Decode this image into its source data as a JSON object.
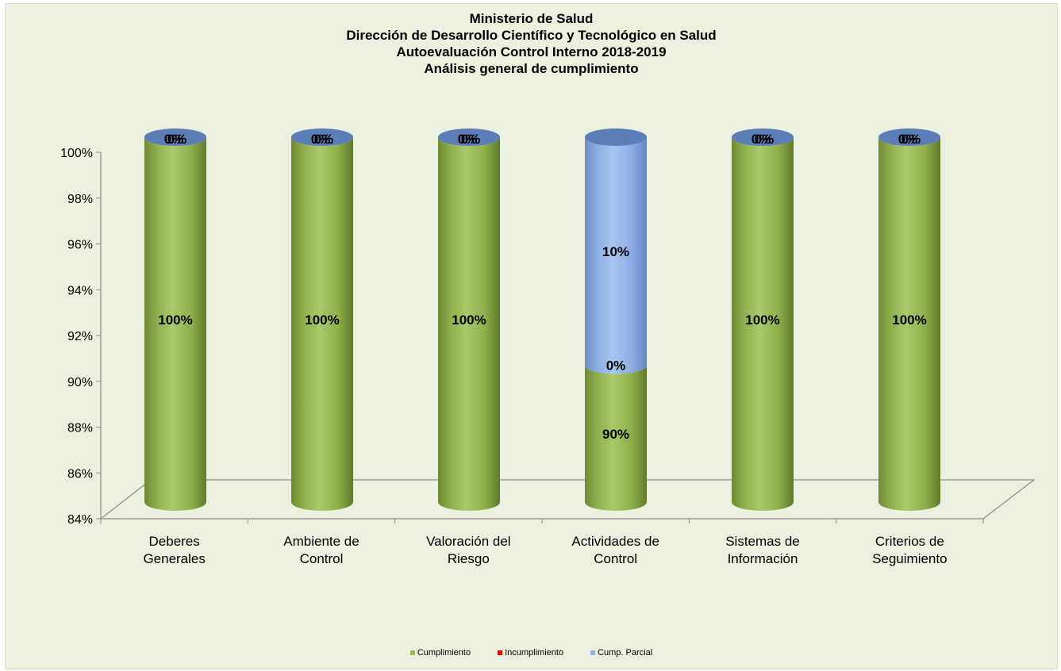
{
  "chart_data": {
    "type": "bar",
    "style": "3d-cylinder-stacked",
    "title_lines": [
      "Ministerio de Salud",
      "Dirección de Desarrollo Científico y Tecnológico en Salud",
      "Autoevaluación Control Interno 2018-2019",
      "Análisis general de cumplimiento"
    ],
    "categories": [
      [
        "Deberes",
        "Generales"
      ],
      [
        "Ambiente de",
        "Control"
      ],
      [
        "Valoración del",
        "Riesgo"
      ],
      [
        "Actividades de",
        "Control"
      ],
      [
        "Sistemas de",
        "Información"
      ],
      [
        "Criterios de",
        "Seguimiento"
      ]
    ],
    "series": [
      {
        "name": "Cumplimiento",
        "color": "#9bbb59",
        "values": [
          100,
          100,
          100,
          90,
          100,
          100
        ]
      },
      {
        "name": "Incumplimiento",
        "color": "#ff0000",
        "values": [
          0,
          0,
          0,
          0,
          0,
          0
        ]
      },
      {
        "name": "Cump. Parcial",
        "color": "#95b3e5",
        "values": [
          0,
          0,
          0,
          10,
          0,
          0
        ]
      }
    ],
    "data_labels": [
      [
        "100%",
        "0%",
        "0%"
      ],
      [
        "100%",
        "0%",
        "0%"
      ],
      [
        "100%",
        "0%",
        "0%"
      ],
      [
        "90%",
        "0%",
        "10%"
      ],
      [
        "100%",
        "0%",
        "0%"
      ],
      [
        "100%",
        "0%",
        "0%"
      ]
    ],
    "ylim": [
      84,
      100
    ],
    "y_ticks": [
      "84%",
      "86%",
      "88%",
      "90%",
      "92%",
      "94%",
      "96%",
      "98%",
      "100%"
    ],
    "grid": false,
    "legend_position": "bottom",
    "background_color": "#ebf1de"
  }
}
